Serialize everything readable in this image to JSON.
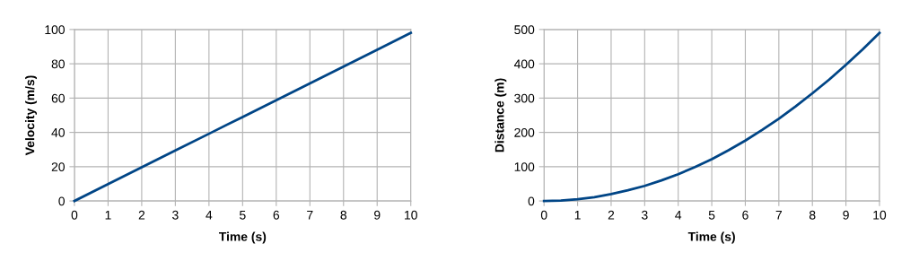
{
  "chart_data": [
    {
      "type": "line",
      "xlabel": "Time (s)",
      "ylabel": "Velocity (m/s)",
      "xlim": [
        0,
        10
      ],
      "ylim": [
        0,
        100
      ],
      "xticks": [
        0,
        1,
        2,
        3,
        4,
        5,
        6,
        7,
        8,
        9,
        10
      ],
      "yticks": [
        0,
        20,
        40,
        60,
        80,
        100
      ],
      "grid": true,
      "marker": "none",
      "line_style": "solid",
      "series": [
        {
          "color": "#004586",
          "x": [
            0,
            1,
            2,
            3,
            4,
            5,
            6,
            7,
            8,
            9,
            10
          ],
          "values": [
            0,
            9.8,
            19.6,
            29.4,
            39.2,
            49,
            58.8,
            68.6,
            78.4,
            88.2,
            98
          ]
        }
      ]
    },
    {
      "type": "line",
      "xlabel": "Time (s)",
      "ylabel": "Distance (m)",
      "xlim": [
        0,
        10
      ],
      "ylim": [
        0,
        500
      ],
      "xticks": [
        0,
        1,
        2,
        3,
        4,
        5,
        6,
        7,
        8,
        9,
        10
      ],
      "yticks": [
        0,
        100,
        200,
        300,
        400,
        500
      ],
      "grid": true,
      "marker": "none",
      "line_style": "solid",
      "series": [
        {
          "color": "#004586",
          "x": [
            0,
            0.5,
            1,
            1.5,
            2,
            2.5,
            3,
            3.5,
            4,
            4.5,
            5,
            5.5,
            6,
            6.5,
            7,
            7.5,
            8,
            8.5,
            9,
            9.5,
            10
          ],
          "values": [
            0,
            1,
            5,
            11,
            20,
            31,
            44,
            60,
            78,
            99,
            122,
            148,
            176,
            207,
            240,
            276,
            314,
            354,
            397,
            442,
            490
          ]
        }
      ]
    }
  ]
}
